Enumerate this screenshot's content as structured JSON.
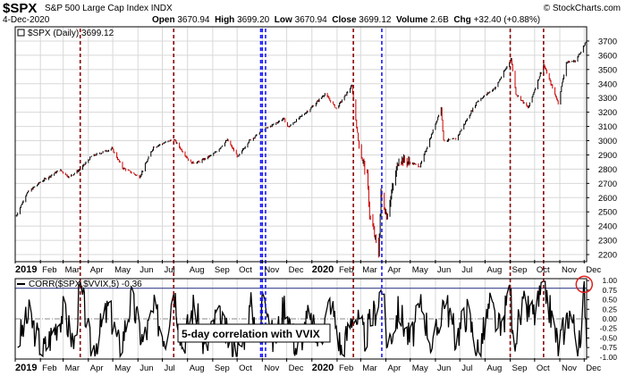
{
  "header": {
    "symbol": "$SPX",
    "name": "S&P 500 Large Cap Index",
    "exchange": "INDX",
    "credit": "© StockCharts.com",
    "date": "4-Dec-2020",
    "quote": {
      "open_label": "Open",
      "open": "3670.94",
      "high_label": "High",
      "high": "3699.20",
      "low_label": "Low",
      "low": "3670.94",
      "close_label": "Close",
      "close": "3699.12",
      "volume_label": "Volume",
      "volume": "2.6B",
      "chg_label": "Chg",
      "chg": "+32.40 (+0.88%)"
    }
  },
  "price_panel": {
    "legend": "$SPX (Daily) 3699.12"
  },
  "corr_panel": {
    "legend": "CORR($SPX,$VVIX,5) -0.36",
    "annotation": "5-day correlation with VVIX"
  },
  "x_axis": {
    "labels": [
      {
        "text": "2019",
        "year": true,
        "date": "2019-01-01"
      },
      {
        "text": "Feb",
        "date": "2019-02-01"
      },
      {
        "text": "Mar",
        "date": "2019-03-01"
      },
      {
        "text": "Apr",
        "date": "2019-04-01"
      },
      {
        "text": "May",
        "date": "2019-05-01"
      },
      {
        "text": "Jun",
        "date": "2019-06-01"
      },
      {
        "text": "Jul",
        "date": "2019-07-01"
      },
      {
        "text": "Aug",
        "date": "2019-08-01"
      },
      {
        "text": "Sep",
        "date": "2019-09-01"
      },
      {
        "text": "Oct",
        "date": "2019-10-01"
      },
      {
        "text": "Nov",
        "date": "2019-11-01"
      },
      {
        "text": "Dec",
        "date": "2019-12-01"
      },
      {
        "text": "2020",
        "year": true,
        "date": "2020-01-01"
      },
      {
        "text": "Feb",
        "date": "2020-02-01"
      },
      {
        "text": "Mar",
        "date": "2020-03-01"
      },
      {
        "text": "Apr",
        "date": "2020-04-01"
      },
      {
        "text": "May",
        "date": "2020-05-01"
      },
      {
        "text": "Jun",
        "date": "2020-06-01"
      },
      {
        "text": "Jul",
        "date": "2020-07-01"
      },
      {
        "text": "Aug",
        "date": "2020-08-01"
      },
      {
        "text": "Sep",
        "date": "2020-09-01"
      },
      {
        "text": "Oct",
        "date": "2020-10-01"
      },
      {
        "text": "Nov",
        "date": "2020-11-01"
      },
      {
        "text": "Dec",
        "date": "2020-12-01"
      }
    ]
  },
  "chart_data": [
    {
      "type": "line",
      "x_range": [
        "2019-01-01",
        "2020-12-04"
      ],
      "ylim": [
        2150,
        3800
      ],
      "y_ticks": [
        2200,
        2300,
        2400,
        2500,
        2600,
        2700,
        2800,
        2900,
        3000,
        3100,
        3200,
        3300,
        3400,
        3500,
        3600,
        3700
      ],
      "grid": true,
      "colors": {
        "up": "#000000",
        "down": "#cc0000",
        "gridline": "#d8d8d8"
      },
      "series": [
        {
          "x": [
            "2019-01-02",
            "2019-01-15",
            "2019-02-01",
            "2019-02-25",
            "2019-03-08",
            "2019-03-22",
            "2019-04-05",
            "2019-04-30",
            "2019-05-13",
            "2019-06-03",
            "2019-06-20",
            "2019-07-15",
            "2019-08-05",
            "2019-08-15",
            "2019-09-03",
            "2019-09-19",
            "2019-10-02",
            "2019-10-15",
            "2019-11-01",
            "2019-11-27",
            "2019-12-03",
            "2019-12-31",
            "2020-01-17",
            "2020-01-31",
            "2020-02-19",
            "2020-02-28",
            "2020-03-09",
            "2020-03-12",
            "2020-03-16",
            "2020-03-23",
            "2020-03-26",
            "2020-04-02",
            "2020-04-17",
            "2020-05-13",
            "2020-06-08",
            "2020-06-11",
            "2020-06-26",
            "2020-07-22",
            "2020-08-14",
            "2020-09-02",
            "2020-09-08",
            "2020-09-23",
            "2020-10-12",
            "2020-10-30",
            "2020-11-09",
            "2020-11-20",
            "2020-12-04"
          ],
          "values": [
            2470,
            2630,
            2710,
            2795,
            2745,
            2800,
            2890,
            2945,
            2810,
            2745,
            2955,
            3010,
            2845,
            2850,
            2910,
            3005,
            2885,
            2995,
            3070,
            3155,
            3095,
            3230,
            3330,
            3225,
            3385,
            2955,
            2745,
            2480,
            2390,
            2200,
            2630,
            2470,
            2875,
            2820,
            3230,
            3000,
            3010,
            3275,
            3375,
            3575,
            3330,
            3230,
            3535,
            3265,
            3550,
            3560,
            3699
          ]
        }
      ]
    },
    {
      "type": "line",
      "x_range": [
        "2019-01-01",
        "2020-12-04"
      ],
      "ylim": [
        -1.05,
        1.05
      ],
      "y_ticks": [
        -1.0,
        -0.75,
        -0.5,
        -0.25,
        0.0,
        0.25,
        0.5,
        0.75,
        1.0
      ],
      "y_tick_labels": [
        "-1.00",
        "-0.75",
        "-0.50",
        "-0.25",
        "0.00",
        "0.25",
        "0.50",
        "0.75",
        "1.00"
      ],
      "reference_lines": [
        {
          "y": 0.8,
          "color": "#1f2a7a"
        },
        {
          "y": 0.0,
          "color": "#888888",
          "style": "dash-dot"
        }
      ],
      "series": [
        {
          "name": "CORR($SPX,$VVIX,5)",
          "x": [
            "2019-01-04",
            "2019-01-18",
            "2019-02-04",
            "2019-02-15",
            "2019-03-01",
            "2019-03-15",
            "2019-03-22",
            "2019-04-05",
            "2019-04-26",
            "2019-05-10",
            "2019-05-24",
            "2019-06-07",
            "2019-06-21",
            "2019-07-05",
            "2019-07-15",
            "2019-07-26",
            "2019-08-09",
            "2019-08-23",
            "2019-09-06",
            "2019-09-20",
            "2019-10-04",
            "2019-10-18",
            "2019-10-30",
            "2019-11-01",
            "2019-11-05",
            "2019-11-15",
            "2019-11-29",
            "2019-12-13",
            "2019-12-27",
            "2020-01-10",
            "2020-01-24",
            "2020-02-07",
            "2020-02-21",
            "2020-03-06",
            "2020-03-20",
            "2020-03-27",
            "2020-04-03",
            "2020-04-17",
            "2020-05-01",
            "2020-05-15",
            "2020-05-29",
            "2020-06-12",
            "2020-06-26",
            "2020-07-10",
            "2020-07-24",
            "2020-08-07",
            "2020-08-21",
            "2020-09-01",
            "2020-09-04",
            "2020-09-18",
            "2020-10-02",
            "2020-10-12",
            "2020-10-30",
            "2020-11-13",
            "2020-11-27",
            "2020-12-01",
            "2020-12-04"
          ],
          "values": [
            -0.6,
            0.1,
            -0.85,
            -0.4,
            0.2,
            -0.7,
            0.95,
            -0.9,
            0.3,
            -0.8,
            0.5,
            -0.6,
            0.2,
            -0.5,
            0.85,
            -0.7,
            0.4,
            -0.85,
            0.1,
            -0.5,
            -0.9,
            0.3,
            -0.6,
            0.9,
            0.7,
            -0.7,
            0.45,
            -0.8,
            0.0,
            -0.6,
            0.5,
            -0.9,
            0.2,
            -0.5,
            0.3,
            0.9,
            -0.7,
            0.25,
            -0.6,
            0.4,
            -0.8,
            0.6,
            -0.5,
            0.2,
            -0.9,
            0.35,
            -0.4,
            0.95,
            -0.6,
            0.3,
            0.1,
            0.95,
            -0.7,
            0.2,
            -0.85,
            0.92,
            -0.36
          ]
        }
      ]
    }
  ],
  "event_lines": [
    {
      "date": "2019-03-22",
      "color": "#8b0000"
    },
    {
      "date": "2019-07-15",
      "color": "#8b0000"
    },
    {
      "date": "2019-10-30",
      "color": "#1a1aff"
    },
    {
      "date": "2019-11-01",
      "color": "#1a1aff"
    },
    {
      "date": "2019-11-05",
      "color": "#1a1aff"
    },
    {
      "date": "2020-02-21",
      "color": "#8b0000"
    },
    {
      "date": "2020-03-27",
      "color": "#1a1aff"
    },
    {
      "date": "2020-09-01",
      "color": "#8b0000"
    },
    {
      "date": "2020-10-12",
      "color": "#8b0000"
    }
  ],
  "highlight": {
    "date": "2020-12-01",
    "color": "#e02020"
  }
}
